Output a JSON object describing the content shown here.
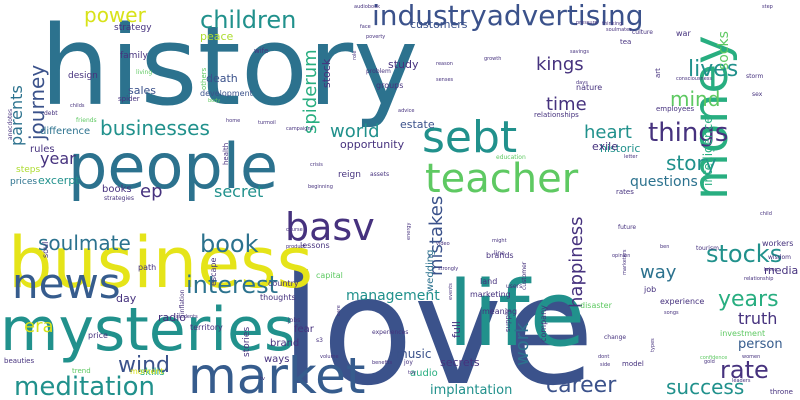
{
  "word_cloud": {
    "palette": {
      "dark_purple": "#46327e",
      "indigo": "#3b528b",
      "blue": "#365c8d",
      "slate": "#2c728e",
      "teal": "#21918c",
      "sea_green": "#28ae80",
      "green": "#5ec962",
      "light_green": "#addc30",
      "yellow": "#d8e219",
      "bright_yellow": "#e5e419"
    },
    "words": [
      {
        "text": "history",
        "color": "#2c728e"
      },
      {
        "text": "love",
        "color": "#3b528b"
      },
      {
        "text": "people",
        "color": "#2c728e"
      },
      {
        "text": "business",
        "color": "#e5e419"
      },
      {
        "text": "mysteries",
        "color": "#21918c"
      },
      {
        "text": "life",
        "color": "#21918c"
      },
      {
        "text": "money",
        "color": "#28ae80"
      },
      {
        "text": "market",
        "color": "#365c8d"
      },
      {
        "text": "sebt",
        "color": "#21918c"
      },
      {
        "text": "teacher",
        "color": "#5ec962"
      },
      {
        "text": "news",
        "color": "#365c8d"
      },
      {
        "text": "basv",
        "color": "#46327e"
      },
      {
        "text": "children",
        "color": "#21918c"
      },
      {
        "text": "industryadvertising",
        "color": "#3b528b"
      },
      {
        "text": "meditation",
        "color": "#21918c"
      },
      {
        "text": "businesses",
        "color": "#21918c"
      },
      {
        "text": "interest",
        "color": "#2c728e"
      },
      {
        "text": "stocks",
        "color": "#21918c"
      },
      {
        "text": "things",
        "color": "#46327e"
      },
      {
        "text": "soulmate",
        "color": "#2c728e"
      },
      {
        "text": "book",
        "color": "#2c728e"
      },
      {
        "text": "rate",
        "color": "#46327e"
      },
      {
        "text": "success",
        "color": "#21918c"
      },
      {
        "text": "years",
        "color": "#28ae80"
      },
      {
        "text": "story",
        "color": "#21918c"
      },
      {
        "text": "wind",
        "color": "#3b528b"
      },
      {
        "text": "career",
        "color": "#3b528b"
      },
      {
        "text": "power",
        "color": "#d8e219"
      },
      {
        "text": "journey",
        "color": "#3b528b"
      },
      {
        "text": "parents",
        "color": "#2c728e"
      },
      {
        "text": "heart",
        "color": "#21918c"
      },
      {
        "text": "world",
        "color": "#21918c"
      },
      {
        "text": "mistakes",
        "color": "#3b528b"
      },
      {
        "text": "happiness",
        "color": "#46327e"
      },
      {
        "text": "work",
        "color": "#2c728e"
      },
      {
        "text": "mind",
        "color": "#5ec962"
      },
      {
        "text": "lives",
        "color": "#21918c"
      },
      {
        "text": "kings",
        "color": "#46327e"
      },
      {
        "text": "time",
        "color": "#46327e"
      },
      {
        "text": "spiderum",
        "color": "#28ae80"
      },
      {
        "text": "socks",
        "color": "#5ec962"
      },
      {
        "text": "intelligence",
        "color": "#28ae80"
      },
      {
        "text": "secret",
        "color": "#21918c"
      },
      {
        "text": "truth",
        "color": "#46327e"
      },
      {
        "text": "ep",
        "color": "#46327e"
      },
      {
        "text": "year",
        "color": "#46327e"
      },
      {
        "text": "era",
        "color": "#d8e219"
      },
      {
        "text": "way",
        "color": "#2c728e"
      },
      {
        "text": "management",
        "color": "#21918c"
      },
      {
        "text": "questions",
        "color": "#2c728e"
      },
      {
        "text": "peace",
        "color": "#addc30"
      },
      {
        "text": "customers",
        "color": "#3b528b"
      },
      {
        "text": "historic",
        "color": "#21918c"
      },
      {
        "text": "implantation",
        "color": "#21918c"
      },
      {
        "text": "excerpt",
        "color": "#21918c"
      },
      {
        "text": "person",
        "color": "#365c8d"
      },
      {
        "text": "sales",
        "color": "#3b528b"
      },
      {
        "text": "estate",
        "color": "#3b528b"
      },
      {
        "text": "opportunity",
        "color": "#46327e"
      },
      {
        "text": "music",
        "color": "#3b528b"
      },
      {
        "text": "radio",
        "color": "#46327e"
      },
      {
        "text": "day",
        "color": "#46327e"
      },
      {
        "text": "death",
        "color": "#3b528b"
      },
      {
        "text": "study",
        "color": "#46327e"
      },
      {
        "text": "stock",
        "color": "#46327e"
      },
      {
        "text": "secrets",
        "color": "#46327e"
      },
      {
        "text": "media",
        "color": "#46327e"
      },
      {
        "text": "difference",
        "color": "#2c728e"
      },
      {
        "text": "rules",
        "color": "#46327e"
      },
      {
        "text": "steps",
        "color": "#addc30"
      },
      {
        "text": "prices",
        "color": "#2c728e"
      },
      {
        "text": "books",
        "color": "#46327e"
      },
      {
        "text": "exile",
        "color": "#46327e"
      },
      {
        "text": "reign",
        "color": "#46327e"
      },
      {
        "text": "full",
        "color": "#46327e"
      },
      {
        "text": "wedding",
        "color": "#2c728e"
      },
      {
        "text": "audio",
        "color": "#28ae80"
      },
      {
        "text": "brand",
        "color": "#46327e"
      },
      {
        "text": "ways",
        "color": "#46327e"
      },
      {
        "text": "stories",
        "color": "#46327e"
      },
      {
        "text": "fear",
        "color": "#46327e"
      },
      {
        "text": "skills",
        "color": "#28ae80"
      },
      {
        "text": "moment",
        "color": "#d8e219"
      },
      {
        "text": "family",
        "color": "#46327e"
      },
      {
        "text": "design",
        "color": "#46327e"
      },
      {
        "text": "strategy",
        "color": "#46327e"
      },
      {
        "text": "development",
        "color": "#3b528b"
      },
      {
        "text": "groups",
        "color": "#46327e"
      },
      {
        "text": "nature",
        "color": "#46327e"
      },
      {
        "text": "meaning",
        "color": "#46327e"
      },
      {
        "text": "marketing",
        "color": "#46327e"
      },
      {
        "text": "experience",
        "color": "#46327e"
      },
      {
        "text": "investment",
        "color": "#5ec962"
      },
      {
        "text": "workers",
        "color": "#46327e"
      },
      {
        "text": "thoughts",
        "color": "#46327e"
      },
      {
        "text": "country",
        "color": "#46327e"
      },
      {
        "text": "capital",
        "color": "#5ec962"
      },
      {
        "text": "lessons",
        "color": "#46327e"
      },
      {
        "text": "jobs",
        "color": "#46327e"
      },
      {
        "text": "job",
        "color": "#46327e"
      },
      {
        "text": "disaster",
        "color": "#5ec962"
      },
      {
        "text": "land",
        "color": "#46327e"
      },
      {
        "text": "brands",
        "color": "#46327e"
      },
      {
        "text": "relationships",
        "color": "#46327e"
      },
      {
        "text": "employees",
        "color": "#46327e"
      },
      {
        "text": "education",
        "color": "#5ec962"
      },
      {
        "text": "tourism",
        "color": "#46327e"
      },
      {
        "text": "wisdom",
        "color": "#46327e"
      },
      {
        "text": "escape",
        "color": "#46327e"
      },
      {
        "text": "territory",
        "color": "#46327e"
      },
      {
        "text": "beauties",
        "color": "#46327e"
      },
      {
        "text": "price",
        "color": "#46327e"
      },
      {
        "text": "path",
        "color": "#46327e"
      },
      {
        "text": "soul",
        "color": "#46327e"
      },
      {
        "text": "art",
        "color": "#46327e"
      },
      {
        "text": "war",
        "color": "#46327e"
      },
      {
        "text": "tea",
        "color": "#46327e"
      },
      {
        "text": "culture",
        "color": "#46327e"
      },
      {
        "text": "storm",
        "color": "#46327e"
      },
      {
        "text": "throne",
        "color": "#46327e"
      },
      {
        "text": "sex",
        "color": "#46327e"
      },
      {
        "text": "rates",
        "color": "#46327e"
      },
      {
        "text": "future",
        "color": "#46327e"
      },
      {
        "text": "health",
        "color": "#46327e"
      },
      {
        "text": "wife",
        "color": "#46327e"
      },
      {
        "text": "others",
        "color": "#5ec962"
      },
      {
        "text": "living",
        "color": "#5ec962"
      },
      {
        "text": "spider",
        "color": "#46327e"
      },
      {
        "text": "friends",
        "color": "#5ec962"
      },
      {
        "text": "debt",
        "color": "#46327e"
      },
      {
        "text": "anecdotes",
        "color": "#46327e"
      },
      {
        "text": "strategies",
        "color": "#46327e"
      },
      {
        "text": "inflation",
        "color": "#46327e"
      },
      {
        "text": "audiobook",
        "color": "#46327e"
      },
      {
        "text": "pressure",
        "color": "#46327e"
      },
      {
        "text": "soulmates",
        "color": "#46327e"
      },
      {
        "text": "savings",
        "color": "#46327e"
      },
      {
        "text": "consciousness",
        "color": "#46327e"
      },
      {
        "text": "problem",
        "color": "#46327e"
      },
      {
        "text": "reason",
        "color": "#46327e"
      },
      {
        "text": "growth",
        "color": "#46327e"
      },
      {
        "text": "senses",
        "color": "#46327e"
      },
      {
        "text": "advice",
        "color": "#46327e"
      },
      {
        "text": "assets",
        "color": "#46327e"
      },
      {
        "text": "face",
        "color": "#46327e"
      },
      {
        "text": "role",
        "color": "#46327e"
      },
      {
        "text": "step",
        "color": "#46327e"
      },
      {
        "text": "thinking",
        "color": "#46327e"
      },
      {
        "text": "days",
        "color": "#46327e"
      },
      {
        "text": "letter",
        "color": "#46327e"
      },
      {
        "text": "child",
        "color": "#46327e"
      },
      {
        "text": "labor",
        "color": "#46327e"
      },
      {
        "text": "relationship",
        "color": "#46327e"
      },
      {
        "text": "opinion",
        "color": "#46327e"
      },
      {
        "text": "marketers",
        "color": "#46327e"
      },
      {
        "text": "dont",
        "color": "#46327e"
      },
      {
        "text": "side",
        "color": "#46327e"
      },
      {
        "text": "change",
        "color": "#46327e"
      },
      {
        "text": "model",
        "color": "#46327e"
      },
      {
        "text": "songs",
        "color": "#46327e"
      },
      {
        "text": "types",
        "color": "#46327e"
      },
      {
        "text": "confidence",
        "color": "#5ec962"
      },
      {
        "text": "gold",
        "color": "#46327e"
      },
      {
        "text": "women",
        "color": "#46327e"
      },
      {
        "text": "leaders",
        "color": "#46327e"
      },
      {
        "text": "supply",
        "color": "#46327e"
      },
      {
        "text": "company",
        "color": "#46327e"
      },
      {
        "text": "users",
        "color": "#46327e"
      },
      {
        "text": "line",
        "color": "#46327e"
      },
      {
        "text": "customer",
        "color": "#46327e"
      },
      {
        "text": "events",
        "color": "#46327e"
      },
      {
        "text": "strongly",
        "color": "#46327e"
      },
      {
        "text": "energy",
        "color": "#46327e"
      },
      {
        "text": "crisis",
        "color": "#46327e"
      },
      {
        "text": "beginning",
        "color": "#46327e"
      },
      {
        "text": "video",
        "color": "#46327e"
      },
      {
        "text": "product",
        "color": "#46327e"
      },
      {
        "text": "course",
        "color": "#46327e"
      },
      {
        "text": "care",
        "color": "#46327e"
      },
      {
        "text": "experiences",
        "color": "#46327e"
      },
      {
        "text": "benefits",
        "color": "#46327e"
      },
      {
        "text": "volume",
        "color": "#46327e"
      },
      {
        "text": "s3",
        "color": "#46327e"
      },
      {
        "text": "students",
        "color": "#46327e"
      },
      {
        "text": "trend",
        "color": "#5ec962"
      },
      {
        "text": "turmoil",
        "color": "#46327e"
      },
      {
        "text": "campaigns",
        "color": "#46327e"
      },
      {
        "text": "home",
        "color": "#46327e"
      },
      {
        "text": "body",
        "color": "#5ec962"
      },
      {
        "text": "childs",
        "color": "#46327e"
      },
      {
        "text": "poverty",
        "color": "#46327e"
      },
      {
        "text": "tv",
        "color": "#46327e"
      },
      {
        "text": "might",
        "color": "#46327e"
      },
      {
        "text": "joy",
        "color": "#46327e"
      },
      {
        "text": "toy",
        "color": "#46327e"
      },
      {
        "text": "ben",
        "color": "#46327e"
      }
    ]
  }
}
